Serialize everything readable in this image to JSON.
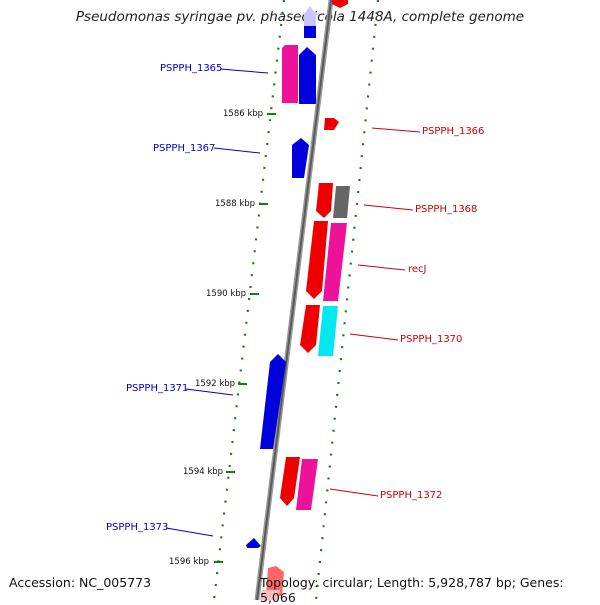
{
  "title": "Pseudomonas syringae pv. phaseolicola 1448A, complete genome",
  "accession": "Accession: NC_005773",
  "topology": "Topology: circular; Length: 5,928,787 bp; Genes: 5,066",
  "kbp_labels": [
    "1586 kbp",
    "1588 kbp",
    "1590 kbp",
    "1592 kbp",
    "1594 kbp",
    "1596 kbp"
  ],
  "genes_left": [
    {
      "name": "PSPPH_1365"
    },
    {
      "name": "PSPPH_1367"
    },
    {
      "name": "PSPPH_1371"
    },
    {
      "name": "PSPPH_1373"
    }
  ],
  "genes_right": [
    {
      "name": "PSPPH_1366"
    },
    {
      "name": "PSPPH_1368"
    },
    {
      "name": "recJ"
    },
    {
      "name": "PSPPH_1370"
    },
    {
      "name": "PSPPH_1372"
    }
  ],
  "colors": {
    "blue": "#0000dd",
    "red": "#ee0000",
    "pink": "#ee1199",
    "gray": "#666666",
    "cyan": "#00e8f0",
    "backbone": "#888888",
    "ticks": "#1a7a1a"
  }
}
